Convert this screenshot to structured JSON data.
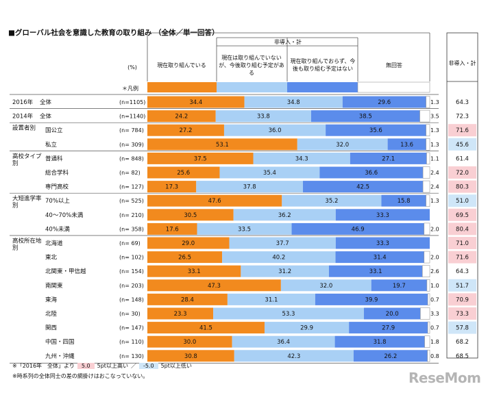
{
  "title": "■グローバル社会を意識した教育の取り組み （全体／単一回答）",
  "header": {
    "percent_unit": "(%)",
    "group_label": "非導入・計",
    "legend_label": "＊凡例",
    "col_headers": [
      "現在取り組んでいる",
      "現在は取り組んでいないが、今後取り組む予定がある",
      "現在取り組んでおらず、今後も取り組む予定はない",
      "無回答"
    ],
    "right_header": "非導入・計"
  },
  "chart_data": {
    "type": "bar",
    "stacked": true,
    "orientation": "horizontal",
    "xlim": [
      0,
      100
    ],
    "title": "グローバル社会を意識した教育の取り組み（全体／単一回答）",
    "series": [
      {
        "name": "現在取り組んでいる",
        "color": "#F28A1E",
        "values": [
          34.4,
          24.2,
          27.2,
          53.1,
          37.5,
          25.6,
          17.3,
          47.6,
          30.5,
          17.6,
          29.0,
          26.5,
          33.1,
          47.3,
          28.4,
          23.3,
          41.5,
          30.0,
          30.8
        ]
      },
      {
        "name": "現在は取り組んでいないが、今後取り組む予定がある",
        "color": "#A9D0F5",
        "values": [
          34.8,
          33.8,
          36.0,
          32.0,
          34.3,
          35.4,
          37.8,
          35.2,
          36.2,
          33.5,
          37.7,
          40.2,
          31.2,
          32.0,
          31.1,
          53.3,
          29.9,
          36.4,
          42.3
        ]
      },
      {
        "name": "現在取り組んでおらず、今後も取り組む予定はない",
        "color": "#5B8CEB",
        "values": [
          29.6,
          38.5,
          35.6,
          13.6,
          27.1,
          36.6,
          42.5,
          15.8,
          33.3,
          46.9,
          33.3,
          31.4,
          33.1,
          19.7,
          39.9,
          20.0,
          27.9,
          31.8,
          26.2
        ]
      },
      {
        "name": "無回答",
        "color": "#FFFFFF",
        "values": [
          1.3,
          3.5,
          1.3,
          1.3,
          1.1,
          2.4,
          2.4,
          1.3,
          0.0,
          2.0,
          0.0,
          2.0,
          2.6,
          1.0,
          0.7,
          3.3,
          0.7,
          1.8,
          0.8
        ]
      }
    ],
    "value_labels": [
      [
        "34.4",
        "34.8",
        "29.6",
        "1.3"
      ],
      [
        "24.2",
        "33.8",
        "38.5",
        "3.5"
      ],
      [
        "27.2",
        "36.0",
        "35.6",
        "1.3"
      ],
      [
        "53.1",
        "32.0",
        "13.6",
        "1.3"
      ],
      [
        "37.5",
        "34.3",
        "27.1",
        "1.1"
      ],
      [
        "25.6",
        "35.4",
        "36.6",
        "2.4"
      ],
      [
        "17.3",
        "37.8",
        "42.5",
        "2.4"
      ],
      [
        "47.6",
        "35.2",
        "15.8",
        "1.3"
      ],
      [
        "30.5",
        "36.2",
        "33.3",
        ""
      ],
      [
        "17.6",
        "33.5",
        "46.9",
        "2.0"
      ],
      [
        "29.0",
        "37.7",
        "33.3",
        ""
      ],
      [
        "26.5",
        "40.2",
        "31.4",
        "2.0"
      ],
      [
        "33.1",
        "31.2",
        "33.1",
        "2.6"
      ],
      [
        "47.3",
        "32.0",
        "19.7",
        "1.0"
      ],
      [
        "28.4",
        "31.1",
        "39.9",
        "0.7"
      ],
      [
        "23.3",
        "53.3",
        "20.0",
        "3.3"
      ],
      [
        "41.5",
        "29.9",
        "27.9",
        "0.7"
      ],
      [
        "30.0",
        "36.4",
        "31.8",
        "1.8"
      ],
      [
        "30.8",
        "42.3",
        "26.2",
        "0.8"
      ]
    ],
    "rows": [
      {
        "group": "2016年",
        "label": "全体",
        "n": "(n=1105)",
        "non_adopt": "64.3",
        "highlight": "none"
      },
      {
        "group": "2014年",
        "label": "全体",
        "n": "(n=1140)",
        "non_adopt": "72.3",
        "highlight": "none"
      },
      {
        "group": "設置者別",
        "label": "国公立",
        "n": "(n=  784)",
        "non_adopt": "71.6",
        "highlight": "high"
      },
      {
        "group": "",
        "label": "私立",
        "n": "(n=  309)",
        "non_adopt": "45.6",
        "highlight": "low"
      },
      {
        "group": "高校タイプ別",
        "label": "普通科",
        "n": "(n=  848)",
        "non_adopt": "61.4",
        "highlight": "none"
      },
      {
        "group": "",
        "label": "総合学科",
        "n": "(n=    82)",
        "non_adopt": "72.0",
        "highlight": "high"
      },
      {
        "group": "",
        "label": "専門高校",
        "n": "(n=  127)",
        "non_adopt": "80.3",
        "highlight": "high"
      },
      {
        "group": "大短進学率別",
        "label": "70%以上",
        "n": "(n=  525)",
        "non_adopt": "51.0",
        "highlight": "low"
      },
      {
        "group": "",
        "label": "40～70%未満",
        "n": "(n=  210)",
        "non_adopt": "69.5",
        "highlight": "high"
      },
      {
        "group": "",
        "label": "40%未満",
        "n": "(n=  358)",
        "non_adopt": "80.4",
        "highlight": "high"
      },
      {
        "group": "高校所在地別",
        "label": "北海道",
        "n": "(n=    69)",
        "non_adopt": "71.0",
        "highlight": "high"
      },
      {
        "group": "",
        "label": "東北",
        "n": "(n=  102)",
        "non_adopt": "71.6",
        "highlight": "high"
      },
      {
        "group": "",
        "label": "北関東・甲信越",
        "n": "(n=  154)",
        "non_adopt": "64.3",
        "highlight": "none"
      },
      {
        "group": "",
        "label": "南関東",
        "n": "(n=  203)",
        "non_adopt": "51.7",
        "highlight": "low"
      },
      {
        "group": "",
        "label": "東海",
        "n": "(n=  148)",
        "non_adopt": "70.9",
        "highlight": "high"
      },
      {
        "group": "",
        "label": "北陸",
        "n": "(n=    30)",
        "non_adopt": "73.3",
        "highlight": "high"
      },
      {
        "group": "",
        "label": "関西",
        "n": "(n=  147)",
        "non_adopt": "57.8",
        "highlight": "low"
      },
      {
        "group": "",
        "label": "中国・四国",
        "n": "(n=  110)",
        "non_adopt": "68.2",
        "highlight": "none"
      },
      {
        "group": "",
        "label": "九州・沖縄",
        "n": "(n=  130)",
        "non_adopt": "68.5",
        "highlight": "none"
      }
    ]
  },
  "highlight_colors": {
    "high": "#F9CFD3",
    "low": "#CFE6F8"
  },
  "footnotes": {
    "line1_prefix": "※「2016年　全体」より",
    "high_box": "5.0",
    "high_text": "5pt以上高い",
    "separator": "／",
    "low_box": "-5.0",
    "low_text": "5pt以上低い",
    "line2": "※時系列の全体同士の差の網掛けはおこなっていない。"
  },
  "logo": "ReseMom"
}
